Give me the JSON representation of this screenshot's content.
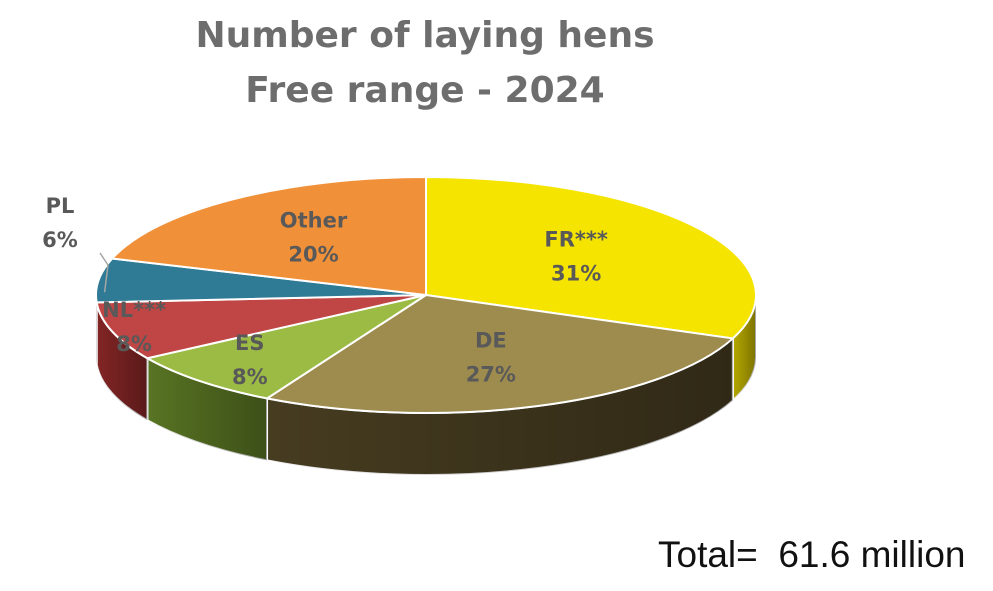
{
  "chart_data": {
    "type": "pie",
    "title_line1": "Number of laying hens",
    "title_line2": "Free range - 2024",
    "slices": [
      {
        "label": "FR***",
        "value": 31,
        "value_label": "31%",
        "color": "#f5e400",
        "dark": "#bfb100"
      },
      {
        "label": "DE",
        "value": 27,
        "value_label": "27%",
        "color": "#9e8b4e",
        "dark": "#4a3f22"
      },
      {
        "label": "ES",
        "value": 8,
        "value_label": "8%",
        "color": "#9bbb45",
        "dark": "#5d7a25"
      },
      {
        "label": "NL***",
        "value": 8,
        "value_label": "8%",
        "color": "#c04545",
        "dark": "#8a2727"
      },
      {
        "label": "PL",
        "value": 6,
        "value_label": "6%",
        "color": "#2f7a95",
        "dark": "#1b4f63"
      },
      {
        "label": "Other",
        "value": 20,
        "value_label": "20%",
        "color": "#f0913a",
        "dark": "#b9682a"
      }
    ],
    "total_text": "Total=  61.6 million"
  }
}
